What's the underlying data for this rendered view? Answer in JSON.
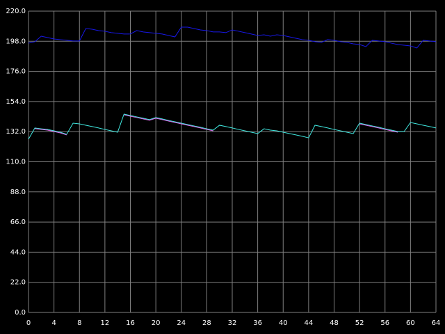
{
  "chart_data": {
    "type": "line",
    "x": [
      0,
      1,
      2,
      3,
      4,
      5,
      6,
      7,
      8,
      9,
      10,
      11,
      12,
      13,
      14,
      15,
      16,
      17,
      18,
      19,
      20,
      21,
      22,
      23,
      24,
      25,
      26,
      27,
      28,
      29,
      30,
      31,
      32,
      33,
      34,
      35,
      36,
      37,
      38,
      39,
      40,
      41,
      42,
      43,
      44,
      45,
      46,
      47,
      48,
      49,
      50,
      51,
      52,
      53,
      54,
      55,
      56,
      57,
      58,
      59,
      60,
      61,
      62,
      63,
      64
    ],
    "series": [
      {
        "color": "#40e8e0",
        "values": [
          126.5,
          134.7,
          134.1,
          133.6,
          132.6,
          131.6,
          130.1,
          138.2,
          137.7,
          136.7,
          135.7,
          134.7,
          133.6,
          132.6,
          131.6,
          144.8,
          143.8,
          142.8,
          141.8,
          140.8,
          142.3,
          141.3,
          140.2,
          139.2,
          138.2,
          137.2,
          136.2,
          135.2,
          134.1,
          133.1,
          136.7,
          135.7,
          134.7,
          133.6,
          132.6,
          131.6,
          130.6,
          134.1,
          133.1,
          132.6,
          131.6,
          130.6,
          129.6,
          128.6,
          127.5,
          136.7,
          135.7,
          134.7,
          133.6,
          132.6,
          131.6,
          130.6,
          138.2,
          137.2,
          136.2,
          135.2,
          134.1,
          133.1,
          132.1,
          132.1,
          138.7,
          137.7,
          136.7,
          135.7,
          134.7
        ]
      },
      {
        "color": "#e070f0",
        "values": [
          null,
          134.2,
          133.6,
          133.1,
          132.1,
          131.1,
          129.6,
          null,
          null,
          null,
          null,
          null,
          null,
          null,
          null,
          144.3,
          143.3,
          142.3,
          141.3,
          140.3,
          141.8,
          140.8,
          139.7,
          138.7,
          137.7,
          136.7,
          135.7,
          134.7,
          133.6,
          132.6,
          null,
          null,
          null,
          null,
          null,
          null,
          null,
          null,
          null,
          null,
          null,
          null,
          null,
          null,
          null,
          null,
          null,
          null,
          null,
          null,
          null,
          null,
          137.7,
          136.7,
          135.7,
          134.7,
          133.6,
          132.6,
          131.6,
          null,
          null,
          null,
          null,
          null,
          null
        ]
      },
      {
        "color": "#1818e8",
        "values": [
          196.6,
          197.7,
          201.7,
          200.7,
          199.7,
          199.2,
          198.7,
          198.2,
          198.2,
          207.3,
          206.8,
          205.8,
          205.3,
          204.3,
          203.8,
          203.3,
          203.3,
          205.8,
          204.8,
          204.3,
          203.8,
          203.3,
          202.2,
          201.2,
          208.3,
          208.3,
          207.3,
          206.3,
          205.8,
          204.8,
          204.8,
          204.3,
          206.3,
          205.3,
          204.3,
          203.3,
          202.2,
          202.7,
          201.7,
          202.7,
          202.2,
          201.2,
          200.2,
          199.2,
          198.7,
          197.7,
          197.2,
          199.2,
          198.7,
          197.7,
          197.2,
          196.1,
          195.6,
          194.1,
          198.7,
          198.2,
          197.7,
          196.6,
          195.6,
          195.1,
          194.6,
          193.1,
          198.7,
          198.2,
          197.7
        ]
      }
    ],
    "xlim": [
      0,
      64
    ],
    "xticks": [
      0,
      4,
      8,
      12,
      16,
      20,
      24,
      28,
      32,
      36,
      40,
      44,
      48,
      52,
      56,
      60,
      64
    ],
    "ylim": [
      0,
      220
    ],
    "yticks": [
      {
        "value": 0,
        "label": "0.0"
      },
      {
        "value": 22,
        "label": "22.0"
      },
      {
        "value": 44,
        "label": "44.0"
      },
      {
        "value": 66,
        "label": "66.0"
      },
      {
        "value": 88,
        "label": "88.0"
      },
      {
        "value": 110,
        "label": "110.0"
      },
      {
        "value": 132,
        "label": "132.0"
      },
      {
        "value": 154,
        "label": "154.0"
      },
      {
        "value": 176,
        "label": "176.0"
      },
      {
        "value": 198,
        "label": "198.0"
      },
      {
        "value": 220,
        "label": "220.0"
      }
    ],
    "grid": true
  }
}
